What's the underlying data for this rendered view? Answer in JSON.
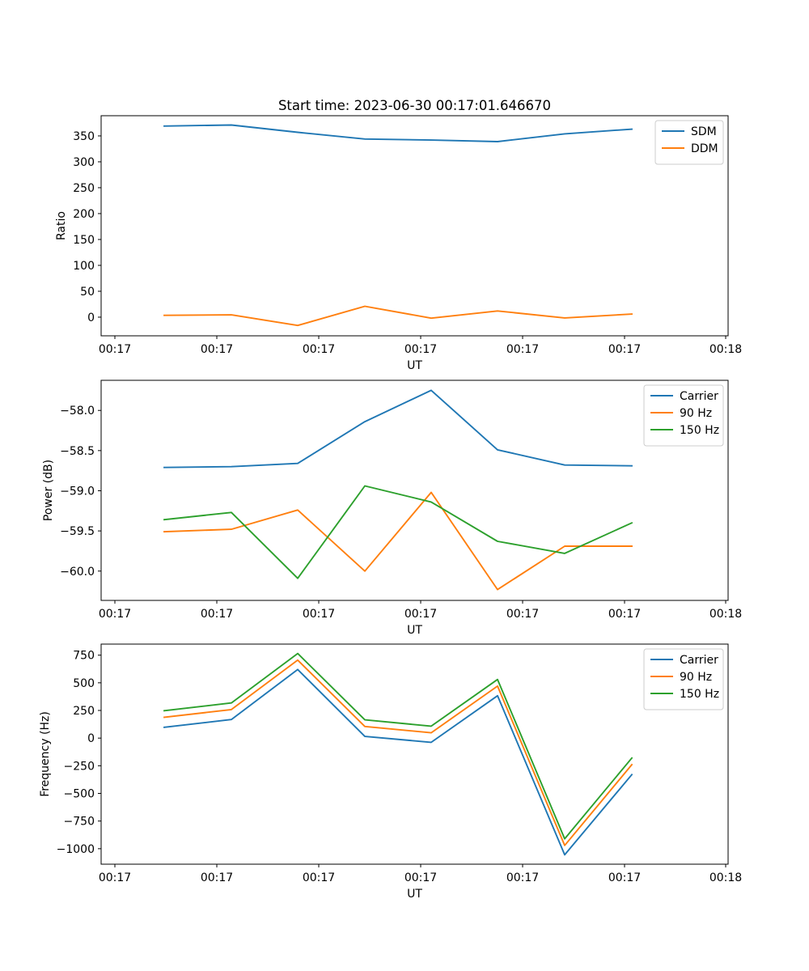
{
  "chart_data": [
    {
      "type": "line",
      "title": "Start time: 2023-06-30 00:17:01.646670",
      "xlabel": "UT",
      "ylabel": "Ratio",
      "x_tick_labels": [
        "00:17",
        "00:17",
        "00:17",
        "00:17",
        "00:17",
        "00:17",
        "00:18"
      ],
      "y_ticks": [
        0,
        50,
        100,
        150,
        200,
        250,
        300,
        350
      ],
      "y_tick_labels": [
        "0",
        "50",
        "100",
        "150",
        "200",
        "250",
        "300",
        "350"
      ],
      "ylim": [
        -36,
        389
      ],
      "legend_position": "top-right",
      "series": [
        {
          "name": "SDM",
          "color": "#1f77b4",
          "values": [
            369,
            371,
            357,
            344,
            342,
            339,
            354,
            363
          ]
        },
        {
          "name": "DDM",
          "color": "#ff7f0e",
          "values": [
            3.5,
            4.5,
            -16,
            21,
            -2,
            12,
            -1.5,
            6
          ]
        }
      ]
    },
    {
      "type": "line",
      "title": "",
      "xlabel": "UT",
      "ylabel": "Power (dB)",
      "x_tick_labels": [
        "00:17",
        "00:17",
        "00:17",
        "00:17",
        "00:17",
        "00:17",
        "00:18"
      ],
      "y_ticks": [
        -58.0,
        -58.5,
        -59.0,
        -59.5,
        -60.0
      ],
      "y_tick_labels": [
        "−58.0",
        "−58.5",
        "−59.0",
        "−59.5",
        "−60.0"
      ],
      "ylim": [
        -60.365,
        -57.625
      ],
      "legend_position": "top-right",
      "series": [
        {
          "name": "Carrier",
          "color": "#1f77b4",
          "values": [
            -58.71,
            -58.7,
            -58.66,
            -58.14,
            -57.75,
            -58.49,
            -58.68,
            -58.69
          ]
        },
        {
          "name": "90 Hz",
          "color": "#ff7f0e",
          "values": [
            -59.51,
            -59.48,
            -59.24,
            -60.0,
            -59.02,
            -60.23,
            -59.69,
            -59.69
          ]
        },
        {
          "name": "150 Hz",
          "color": "#2ca02c",
          "values": [
            -59.36,
            -59.27,
            -60.09,
            -58.94,
            -59.14,
            -59.63,
            -59.78,
            -59.4
          ]
        }
      ]
    },
    {
      "type": "line",
      "title": "",
      "xlabel": "UT",
      "ylabel": "Frequency (Hz)",
      "x_tick_labels": [
        "00:17",
        "00:17",
        "00:17",
        "00:17",
        "00:17",
        "00:17",
        "00:18"
      ],
      "y_ticks": [
        750,
        500,
        250,
        0,
        -250,
        -500,
        -750,
        -1000
      ],
      "y_tick_labels": [
        "750",
        "500",
        "250",
        "0",
        "−250",
        "−500",
        "−750",
        "−1000"
      ],
      "ylim": [
        -1140,
        850
      ],
      "legend_position": "top-right",
      "series": [
        {
          "name": "Carrier",
          "color": "#1f77b4",
          "values": [
            98,
            168,
            620,
            15,
            -38,
            383,
            -1055,
            -330
          ]
        },
        {
          "name": "90 Hz",
          "color": "#ff7f0e",
          "values": [
            188,
            258,
            705,
            105,
            48,
            470,
            -970,
            -240
          ]
        },
        {
          "name": "150 Hz",
          "color": "#2ca02c",
          "values": [
            248,
            318,
            765,
            165,
            108,
            530,
            -910,
            -180
          ]
        }
      ]
    }
  ]
}
